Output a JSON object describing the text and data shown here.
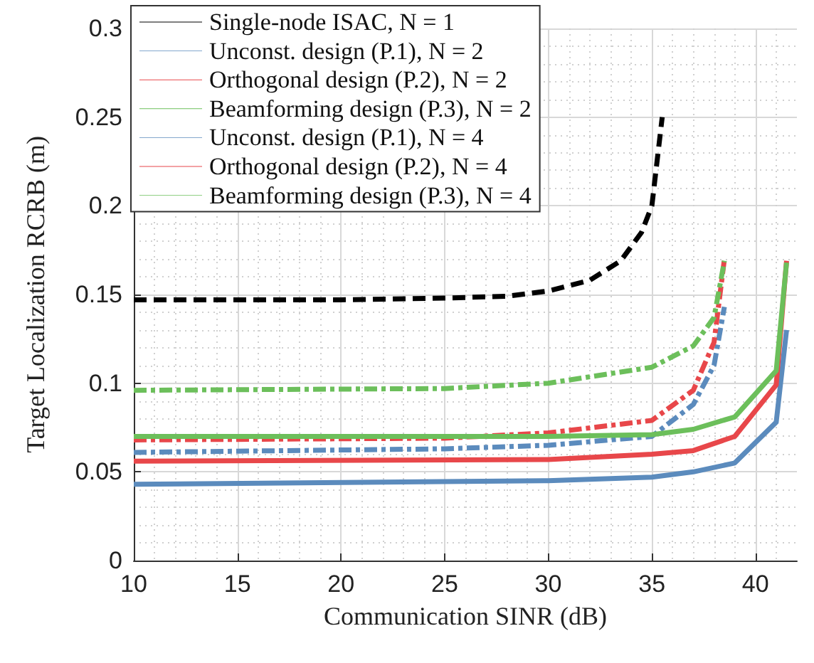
{
  "chart_data": {
    "type": "line",
    "xlabel": "Communication SINR (dB)",
    "ylabel": "Target Localization RCRB (m)",
    "xlim": [
      10,
      42
    ],
    "xticks": [
      10,
      15,
      20,
      25,
      30,
      35,
      40
    ],
    "ylim": [
      0,
      0.3
    ],
    "yticks": [
      0,
      0.05,
      0.1,
      0.15,
      0.2,
      0.25,
      0.3
    ],
    "grid": true,
    "legend": "top left",
    "marker": "none",
    "series": [
      {
        "name": "Single-node ISAC, N = 1",
        "color": "#000000",
        "line_style": "dashed",
        "x": [
          10,
          15,
          20,
          25,
          28,
          30,
          32,
          33.5,
          34.5,
          35,
          35.5
        ],
        "values": [
          0.147,
          0.147,
          0.147,
          0.148,
          0.149,
          0.152,
          0.158,
          0.169,
          0.185,
          0.2,
          0.25
        ]
      },
      {
        "name": "Unconst. design (P.1), N = 2",
        "color": "#5b8bbd",
        "line_style": "dashdot",
        "x": [
          10,
          25,
          30,
          35,
          37,
          38,
          38.5
        ],
        "values": [
          0.061,
          0.063,
          0.065,
          0.07,
          0.088,
          0.11,
          0.143
        ]
      },
      {
        "name": "Orthogonal design (P.2), N = 2",
        "color": "#e8474a",
        "line_style": "dashdot",
        "x": [
          10,
          25,
          30,
          35,
          37,
          38,
          38.5
        ],
        "values": [
          0.068,
          0.069,
          0.072,
          0.079,
          0.096,
          0.123,
          0.17
        ]
      },
      {
        "name": "Beamforming design (P.3), N = 2",
        "color": "#6cbf5b",
        "line_style": "dashdot",
        "x": [
          10,
          25,
          30,
          35,
          37,
          38,
          38.5
        ],
        "values": [
          0.096,
          0.097,
          0.1,
          0.109,
          0.121,
          0.137,
          0.169
        ]
      },
      {
        "name": "Unconst. design (P.1), N = 4",
        "color": "#5b8bbd",
        "line_style": "solid",
        "x": [
          10,
          30,
          35,
          37,
          39,
          41,
          41.5
        ],
        "values": [
          0.043,
          0.045,
          0.047,
          0.05,
          0.055,
          0.078,
          0.13
        ]
      },
      {
        "name": "Orthogonal design (P.2), N = 4",
        "color": "#e8474a",
        "line_style": "solid",
        "x": [
          10,
          30,
          35,
          37,
          39,
          41,
          41.5
        ],
        "values": [
          0.056,
          0.057,
          0.06,
          0.062,
          0.07,
          0.099,
          0.169
        ]
      },
      {
        "name": "Beamforming design (P.3), N = 4",
        "color": "#6cbf5b",
        "line_style": "solid",
        "x": [
          10,
          30,
          35,
          37,
          39,
          41,
          41.5
        ],
        "values": [
          0.07,
          0.07,
          0.071,
          0.074,
          0.081,
          0.107,
          0.168
        ]
      }
    ]
  }
}
